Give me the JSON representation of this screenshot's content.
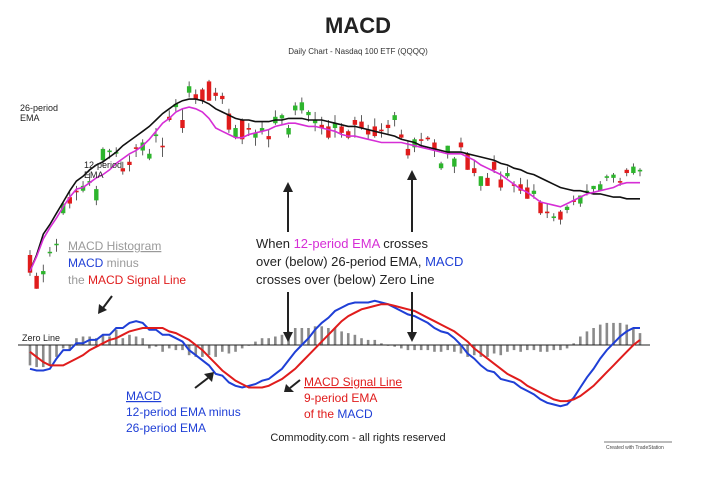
{
  "chart_data": {
    "type": "line",
    "title": "MACD",
    "subtitle": "Daily Chart - Nasdaq 100 ETF (QQQQ)",
    "price_panel": {
      "labels": {
        "ema26": [
          "26-period",
          "EMA"
        ],
        "ema12": [
          "12-period",
          "EMA"
        ]
      },
      "series": [
        {
          "name": "26-period EMA",
          "color": "#111111",
          "values": [
            118,
            128,
            141,
            147,
            154,
            161,
            168,
            174,
            177,
            181,
            184,
            186,
            189,
            192,
            196,
            199,
            202,
            205,
            208,
            212,
            216,
            219,
            222,
            224,
            225,
            225,
            224,
            222,
            219,
            217,
            215,
            213,
            212,
            212,
            211,
            211,
            211,
            212,
            212,
            213,
            213,
            213,
            212,
            212,
            212,
            211,
            210,
            209,
            208,
            208,
            207,
            206,
            205,
            204,
            203,
            202,
            200,
            199,
            198,
            196,
            195,
            194,
            193,
            192,
            192,
            192,
            191,
            190,
            189,
            188,
            187,
            185,
            184,
            182,
            181,
            179,
            178,
            176,
            174,
            172,
            170,
            169,
            168,
            168,
            167,
            166,
            166,
            165,
            164,
            164,
            163,
            163,
            163
          ]
        },
        {
          "name": "12-period EMA",
          "color": "#d62ed6",
          "values": [
            118,
            127,
            138,
            145,
            151,
            158,
            164,
            169,
            170,
            173,
            176,
            178,
            181,
            185,
            188,
            191,
            193,
            196,
            200,
            205,
            210,
            213,
            217,
            219,
            220,
            219,
            217,
            213,
            207,
            205,
            203,
            201,
            201,
            203,
            204,
            205,
            206,
            208,
            209,
            210,
            210,
            209,
            208,
            208,
            207,
            206,
            205,
            203,
            202,
            202,
            201,
            200,
            199,
            198,
            198,
            198,
            198,
            197,
            196,
            195,
            194,
            193,
            192,
            191,
            191,
            191,
            189,
            187,
            184,
            182,
            180,
            178,
            175,
            172,
            169,
            167,
            164,
            161,
            160,
            159,
            158,
            160,
            162,
            164,
            166,
            167,
            168,
            169,
            170,
            172,
            173,
            173,
            173
          ]
        }
      ],
      "candles": [
        {
          "o": 128,
          "h": 131,
          "l": 115,
          "c": 117
        },
        {
          "o": 115,
          "h": 117,
          "l": 107,
          "c": 107
        },
        {
          "o": 116,
          "h": 122,
          "l": 111,
          "c": 118
        },
        {
          "o": 130,
          "h": 133,
          "l": 127,
          "c": 130
        },
        {
          "o": 135,
          "h": 138,
          "l": 130,
          "c": 135
        },
        {
          "o": 154,
          "h": 161,
          "l": 153,
          "c": 160
        },
        {
          "o": 164,
          "h": 167,
          "l": 157,
          "c": 160
        },
        {
          "o": 168,
          "h": 171,
          "l": 162,
          "c": 167
        },
        {
          "o": 168,
          "h": 174,
          "l": 167,
          "c": 171
        },
        {
          "o": 173,
          "h": 179,
          "l": 171,
          "c": 174
        },
        {
          "o": 162,
          "h": 171,
          "l": 159,
          "c": 169
        },
        {
          "o": 187,
          "h": 195,
          "l": 183,
          "c": 194
        },
        {
          "o": 192,
          "h": 194,
          "l": 188,
          "c": 193
        },
        {
          "o": 192,
          "h": 195,
          "l": 189,
          "c": 192
        },
        {
          "o": 182,
          "h": 186,
          "l": 178,
          "c": 180
        },
        {
          "o": 186,
          "h": 190,
          "l": 180,
          "c": 184
        },
        {
          "o": 195,
          "h": 197,
          "l": 189,
          "c": 194
        },
        {
          "o": 193,
          "h": 200,
          "l": 190,
          "c": 198
        },
        {
          "o": 188,
          "h": 194,
          "l": 187,
          "c": 191
        },
        {
          "o": 202,
          "h": 207,
          "l": 198,
          "c": 203
        },
        {
          "o": 196,
          "h": 201,
          "l": 189,
          "c": 195
        },
        {
          "o": 214,
          "h": 218,
          "l": 211,
          "c": 212
        },
        {
          "o": 220,
          "h": 225,
          "l": 217,
          "c": 222
        },
        {
          "o": 212,
          "h": 219,
          "l": 204,
          "c": 207
        },
        {
          "o": 229,
          "h": 236,
          "l": 226,
          "c": 233
        },
        {
          "o": 228,
          "h": 231,
          "l": 222,
          "c": 225
        },
        {
          "o": 231,
          "h": 232,
          "l": 222,
          "c": 224
        },
        {
          "o": 236,
          "h": 237,
          "l": 224,
          "c": 224
        },
        {
          "o": 229,
          "h": 232,
          "l": 224,
          "c": 227
        },
        {
          "o": 227,
          "h": 229,
          "l": 222,
          "c": 225
        },
        {
          "o": 216,
          "h": 219,
          "l": 204,
          "c": 206
        },
        {
          "o": 201,
          "h": 209,
          "l": 200,
          "c": 207
        },
        {
          "o": 212,
          "h": 213,
          "l": 197,
          "c": 200
        },
        {
          "o": 207,
          "h": 210,
          "l": 202,
          "c": 206
        },
        {
          "o": 201,
          "h": 206,
          "l": 196,
          "c": 204
        },
        {
          "o": 205,
          "h": 211,
          "l": 203,
          "c": 207
        },
        {
          "o": 202,
          "h": 206,
          "l": 195,
          "c": 200
        },
        {
          "o": 210,
          "h": 218,
          "l": 209,
          "c": 214
        },
        {
          "o": 213,
          "h": 216,
          "l": 209,
          "c": 215
        },
        {
          "o": 203,
          "h": 209,
          "l": 201,
          "c": 207
        },
        {
          "o": 218,
          "h": 223,
          "l": 215,
          "c": 221
        },
        {
          "o": 218,
          "h": 226,
          "l": 216,
          "c": 223
        },
        {
          "o": 215,
          "h": 218,
          "l": 211,
          "c": 217
        },
        {
          "o": 210,
          "h": 217,
          "l": 205,
          "c": 212
        },
        {
          "o": 209,
          "h": 214,
          "l": 203,
          "c": 207
        },
        {
          "o": 208,
          "h": 212,
          "l": 200,
          "c": 201
        },
        {
          "o": 207,
          "h": 215,
          "l": 201,
          "c": 210
        },
        {
          "o": 208,
          "h": 210,
          "l": 201,
          "c": 204
        },
        {
          "o": 205,
          "h": 206,
          "l": 200,
          "c": 201
        },
        {
          "o": 212,
          "h": 214,
          "l": 201,
          "c": 209
        },
        {
          "o": 211,
          "h": 215,
          "l": 206,
          "c": 207
        },
        {
          "o": 206,
          "h": 209,
          "l": 200,
          "c": 203
        },
        {
          "o": 208,
          "h": 213,
          "l": 201,
          "c": 202
        },
        {
          "o": 206,
          "h": 210,
          "l": 201,
          "c": 205
        },
        {
          "o": 209,
          "h": 212,
          "l": 203,
          "c": 207
        },
        {
          "o": 212,
          "h": 217,
          "l": 208,
          "c": 215
        },
        {
          "o": 203,
          "h": 206,
          "l": 200,
          "c": 201
        },
        {
          "o": 194,
          "h": 199,
          "l": 188,
          "c": 190
        },
        {
          "o": 195,
          "h": 201,
          "l": 192,
          "c": 200
        },
        {
          "o": 200,
          "h": 204,
          "l": 195,
          "c": 199
        },
        {
          "o": 201,
          "h": 202,
          "l": 199,
          "c": 200
        },
        {
          "o": 198,
          "h": 200,
          "l": 189,
          "c": 193
        },
        {
          "o": 182,
          "h": 186,
          "l": 181,
          "c": 185
        },
        {
          "o": 191,
          "h": 196,
          "l": 188,
          "c": 196
        },
        {
          "o": 183,
          "h": 189,
          "l": 179,
          "c": 188
        },
        {
          "o": 198,
          "h": 201,
          "l": 193,
          "c": 195
        },
        {
          "o": 191,
          "h": 192,
          "l": 181,
          "c": 181
        },
        {
          "o": 182,
          "h": 187,
          "l": 177,
          "c": 179
        },
        {
          "o": 171,
          "h": 177,
          "l": 168,
          "c": 177
        },
        {
          "o": 176,
          "h": 179,
          "l": 171,
          "c": 171
        },
        {
          "o": 186,
          "h": 190,
          "l": 179,
          "c": 181
        },
        {
          "o": 175,
          "h": 180,
          "l": 168,
          "c": 170
        },
        {
          "o": 177,
          "h": 183,
          "l": 176,
          "c": 179
        },
        {
          "o": 172,
          "h": 174,
          "l": 167,
          "c": 171
        },
        {
          "o": 172,
          "h": 176,
          "l": 166,
          "c": 168
        },
        {
          "o": 170,
          "h": 175,
          "l": 163,
          "c": 163
        },
        {
          "o": 166,
          "h": 172,
          "l": 163,
          "c": 168
        },
        {
          "o": 161,
          "h": 162,
          "l": 153,
          "c": 154
        },
        {
          "o": 155,
          "h": 160,
          "l": 151,
          "c": 154
        },
        {
          "o": 151,
          "h": 154,
          "l": 149,
          "c": 152
        },
        {
          "o": 155,
          "h": 156,
          "l": 147,
          "c": 150
        },
        {
          "o": 156,
          "h": 159,
          "l": 154,
          "c": 158
        },
        {
          "o": 162,
          "h": 165,
          "l": 159,
          "c": 161
        },
        {
          "o": 160,
          "h": 165,
          "l": 158,
          "c": 165
        },
        {
          "o": 168,
          "h": 172,
          "l": 165,
          "c": 168
        },
        {
          "o": 169,
          "h": 171,
          "l": 166,
          "c": 171
        },
        {
          "o": 168,
          "h": 174,
          "l": 168,
          "c": 172
        },
        {
          "o": 176,
          "h": 178,
          "l": 174,
          "c": 177
        },
        {
          "o": 176,
          "h": 179,
          "l": 173,
          "c": 178
        },
        {
          "o": 174,
          "h": 176,
          "l": 171,
          "c": 173
        },
        {
          "o": 181,
          "h": 182,
          "l": 177,
          "c": 179
        },
        {
          "o": 179,
          "h": 185,
          "l": 178,
          "c": 183
        },
        {
          "o": 180,
          "h": 182,
          "l": 177,
          "c": 181
        }
      ]
    },
    "macd_panel": {
      "zero_line_label": "Zero Line",
      "series": [
        {
          "name": "MACD",
          "color": "#1f3fd6",
          "values": [
            -14,
            -15,
            -15,
            -14,
            -8,
            -3,
            -3,
            1,
            1,
            3,
            3,
            6,
            6,
            10,
            10,
            13,
            14,
            13,
            9,
            9,
            6,
            6,
            4,
            2,
            -3,
            -6,
            -9,
            -12,
            -17,
            -18,
            -22,
            -24,
            -25,
            -24,
            -23,
            -21,
            -20,
            -17,
            -14,
            -9,
            -4,
            0,
            4,
            9,
            13,
            16,
            20,
            22,
            24,
            25,
            25,
            25,
            26,
            25,
            24,
            22,
            20,
            18,
            17,
            15,
            13,
            10,
            8,
            7,
            4,
            0,
            -5,
            -8,
            -12,
            -15,
            -16,
            -20,
            -21,
            -22,
            -25,
            -27,
            -29,
            -32,
            -34,
            -35,
            -36,
            -35,
            -31,
            -25,
            -19,
            -14,
            -8,
            -3,
            1,
            5,
            8,
            10,
            10
          ]
        },
        {
          "name": "MACD Signal Line",
          "color": "#e01c1c",
          "values": [
            -4,
            -7,
            -10,
            -12,
            -12,
            -12,
            -10,
            -8,
            -6,
            -3,
            -1,
            1,
            3,
            4,
            6,
            8,
            9,
            10,
            10,
            10,
            10,
            8,
            7,
            5,
            3,
            0,
            -3,
            -7,
            -11,
            -15,
            -18,
            -21,
            -23,
            -25,
            -25,
            -25,
            -24,
            -22,
            -20,
            -17,
            -14,
            -10,
            -6,
            -2,
            2,
            6,
            10,
            14,
            17,
            19,
            21,
            22,
            23,
            24,
            24,
            23,
            22,
            21,
            20,
            18,
            16,
            14,
            12,
            10,
            8,
            5,
            2,
            -2,
            -5,
            -8,
            -11,
            -14,
            -17,
            -19,
            -21,
            -24,
            -26,
            -28,
            -30,
            -32,
            -33,
            -33,
            -32,
            -30,
            -27,
            -24,
            -20,
            -16,
            -12,
            -8,
            -4,
            0,
            3
          ]
        }
      ],
      "histogram": [
        -12,
        -13,
        -13,
        -12,
        -7,
        -2,
        -3,
        4,
        5,
        5,
        4,
        6,
        5,
        9,
        4,
        6,
        5,
        4,
        -2,
        -1,
        -4,
        -2,
        -3,
        -3,
        -6,
        -7,
        -7,
        -6,
        -7,
        -4,
        -5,
        -4,
        -2,
        0,
        2,
        4,
        4,
        5,
        6,
        8,
        10,
        10,
        10,
        11,
        11,
        10,
        10,
        8,
        7,
        6,
        4,
        3,
        3,
        1,
        0,
        -1,
        -2,
        -3,
        -3,
        -3,
        -3,
        -4,
        -4,
        -3,
        -4,
        -5,
        -7,
        -6,
        -7,
        -7,
        -5,
        -6,
        -4,
        -3,
        -4,
        -3,
        -3,
        -4,
        -4,
        -3,
        -3,
        -2,
        1,
        5,
        8,
        10,
        12,
        13,
        13,
        13,
        12,
        10,
        7
      ]
    },
    "annotations": {
      "histogram": {
        "title": "MACD Histogram",
        "line2a": "MACD",
        "line2b": " minus",
        "line3a": "the ",
        "line3b": "MACD Signal Line"
      },
      "cross": {
        "l1a": "When ",
        "l1b": "12-period EMA",
        "l1c": " crosses",
        "l2a": "over (below) 26-period EMA, ",
        "l2b": "MACD",
        "l3": "crosses over (below) Zero Line"
      },
      "macd": {
        "title": "MACD",
        "l2": "12-period EMA minus",
        "l3": "26-period EMA"
      },
      "signal": {
        "title": "MACD Signal Line",
        "l2": "9-period EMA",
        "l3a": "of the ",
        "l3b": "MACD"
      }
    },
    "footer": "Commodity.com - all rights reserved",
    "credit": "Created with TradeStation",
    "colors": {
      "up": "#2db52d",
      "down": "#e01c1c",
      "histogram": "#8a8a8a",
      "macd": "#1f3fd6",
      "signal": "#e01c1c",
      "ema12": "#d62ed6",
      "ema26": "#111111",
      "label_gray": "#9a9a9a"
    }
  }
}
